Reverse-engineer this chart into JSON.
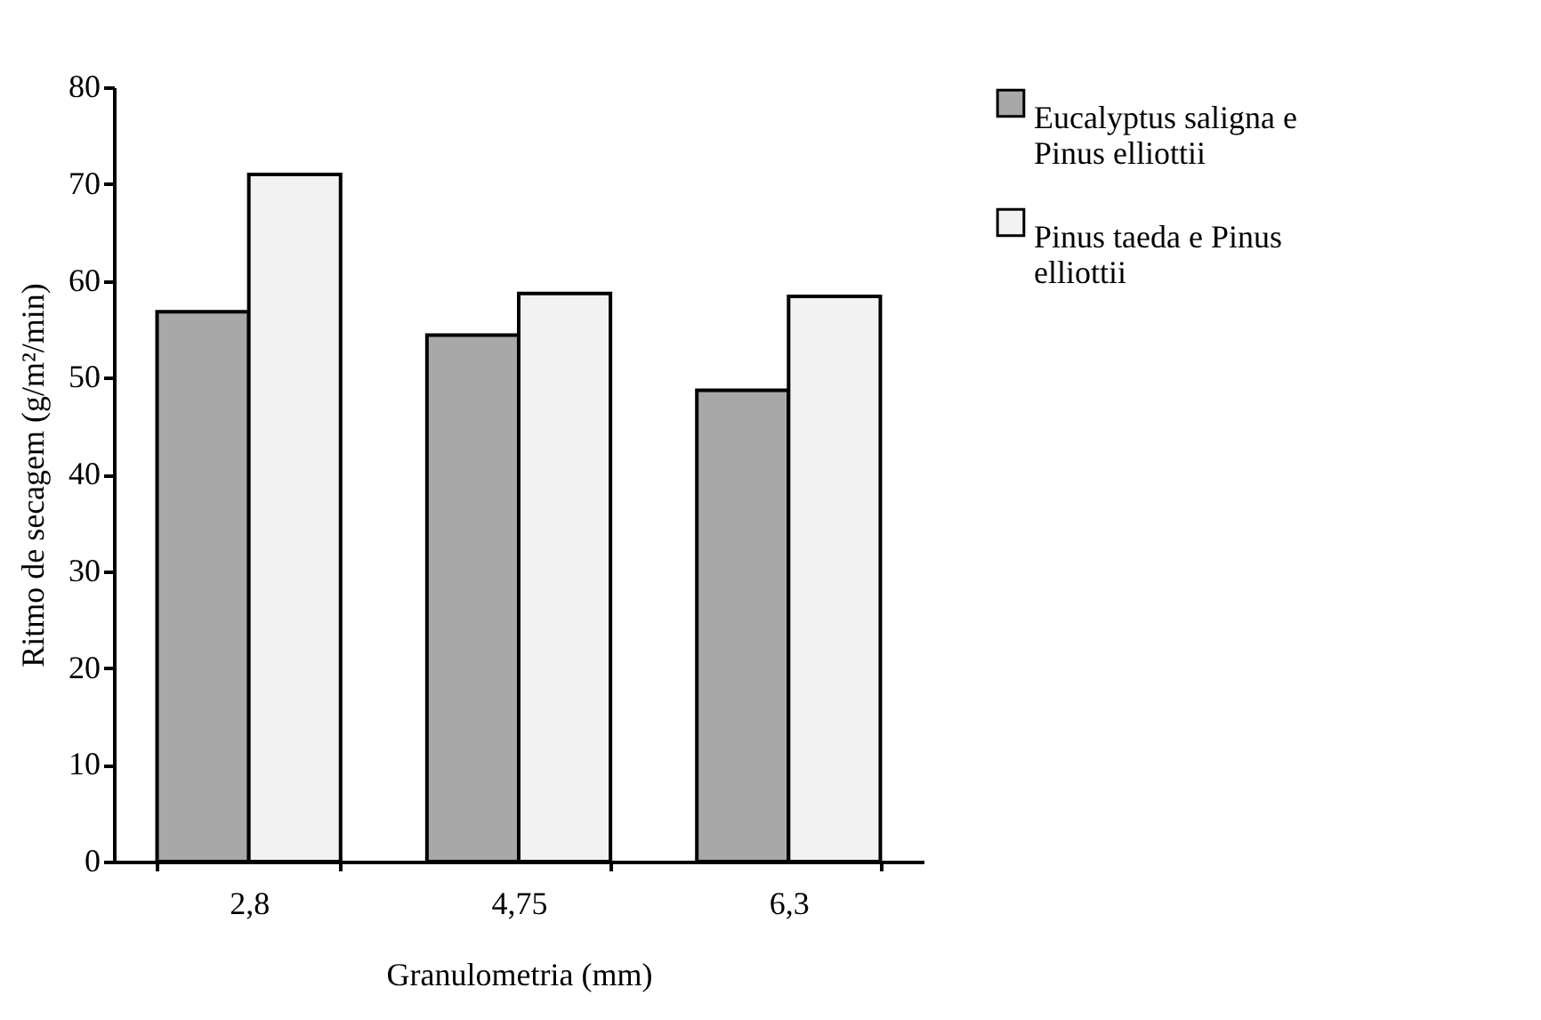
{
  "chart_data": {
    "type": "bar",
    "xlabel": "Granulometria (mm)",
    "ylabel": "Ritmo de secagem (g/m²/min)",
    "categories": [
      "2,8",
      "4,75",
      "6,3"
    ],
    "series": [
      {
        "name": "Eucalyptus saligna e Pinus elliottii",
        "color": "#a8a8a8",
        "values": [
          56.8,
          54.4,
          48.7
        ]
      },
      {
        "name": "Pinus taeda e Pinus elliottii",
        "color": "#f2f2f2",
        "values": [
          71.0,
          58.7,
          58.4
        ]
      }
    ],
    "ylim": [
      0,
      80
    ],
    "yticks": [
      0,
      10,
      20,
      30,
      40,
      50,
      60,
      70,
      80
    ],
    "grid": false,
    "legend": "right"
  }
}
